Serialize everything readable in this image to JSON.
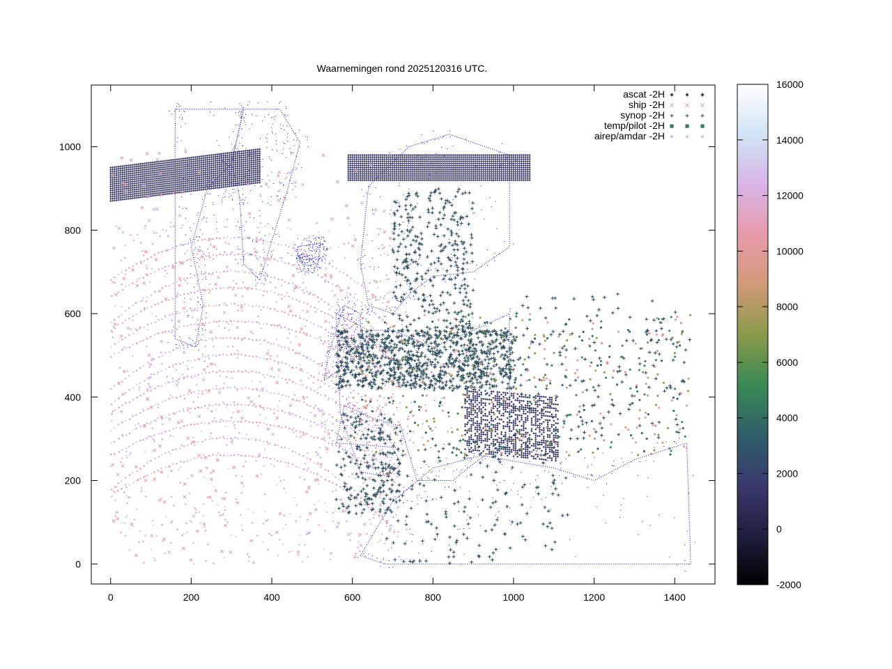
{
  "chart_data": {
    "type": "scatter",
    "title": "Waarnemingen rond 2025120316 UTC.",
    "xlabel": "",
    "ylabel": "",
    "xlim": [
      -48,
      1500
    ],
    "ylim": [
      -48,
      1148
    ],
    "xticks": [
      0,
      200,
      400,
      600,
      800,
      1000,
      1200,
      1400
    ],
    "yticks": [
      0,
      200,
      400,
      600,
      800,
      1000
    ],
    "grid": false,
    "legend_position": "top-right",
    "series": [
      {
        "name": "ascat -2H",
        "marker": "diamond",
        "color": "#383868"
      },
      {
        "name": "ship -2H",
        "marker": "x",
        "color": "#e89aa8"
      },
      {
        "name": "synop -2H",
        "marker": "plus",
        "color": "#2a4a5a"
      },
      {
        "name": "temp/pilot -2H",
        "marker": "square",
        "color": "#2e7d5a"
      },
      {
        "name": "airep/amdar -2H",
        "marker": "diamond",
        "color": "#d9b8e8"
      }
    ],
    "colorbar": {
      "range": [
        -2000,
        16000
      ],
      "ticks": [
        -2000,
        0,
        2000,
        4000,
        6000,
        8000,
        10000,
        12000,
        14000,
        16000
      ],
      "palette": "cubehelix",
      "colors": [
        "#000000",
        "#1f1f3f",
        "#3a3a6e",
        "#2e5f6a",
        "#3a8a55",
        "#8a9a4a",
        "#d29a78",
        "#e89aaa",
        "#d8b4e6",
        "#d0e4f4",
        "#ffffff"
      ]
    },
    "background_map_color": "#0000cc",
    "ascat_color": "#383868"
  }
}
